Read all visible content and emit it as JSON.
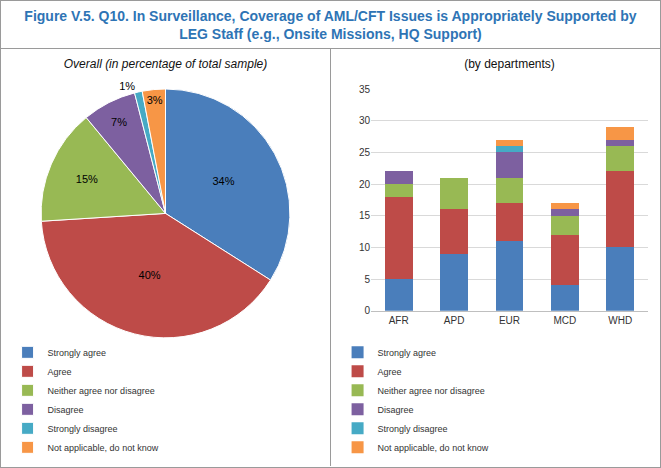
{
  "header": {
    "title": "Figure V.5. Q10. In Surveillance, Coverage of AML/CFT Issues is Appropriately Supported by LEG Staff (e.g., Onsite Missions, HQ Support)"
  },
  "chart_data": [
    {
      "type": "pie",
      "title": "Overall (in percentage of total sample)",
      "categories": [
        "Strongly agree",
        "Agree",
        "Neither agree nor disagree",
        "Disagree",
        "Strongly disagree",
        "Not applicable, do not know"
      ],
      "values": [
        34,
        40,
        15,
        7,
        1,
        3
      ],
      "value_labels": [
        "34%",
        "40%",
        "15%",
        "7%",
        "1%",
        "3%"
      ],
      "colors": [
        "#4a7ebb",
        "#be4b48",
        "#98b954",
        "#7d60a0",
        "#46aac5",
        "#f79646"
      ],
      "data_labels": true,
      "legend": "bottom"
    },
    {
      "type": "bar",
      "title": "(by departments)",
      "categories": [
        "AFR",
        "APD",
        "EUR",
        "MCD",
        "WHD"
      ],
      "series": [
        {
          "name": "Strongly agree",
          "color": "#4a7ebb",
          "values": [
            5,
            9,
            11,
            4,
            10
          ]
        },
        {
          "name": "Agree",
          "color": "#be4b48",
          "values": [
            13,
            7,
            6,
            8,
            12
          ]
        },
        {
          "name": "Neither agree nor disagree",
          "color": "#98b954",
          "values": [
            2,
            5,
            4,
            3,
            4
          ]
        },
        {
          "name": "Disagree",
          "color": "#7d60a0",
          "values": [
            2,
            0,
            4,
            1,
            1
          ]
        },
        {
          "name": "Strongly disagree",
          "color": "#46aac5",
          "values": [
            0,
            0,
            1,
            0,
            0
          ]
        },
        {
          "name": "Not applicable, do not know",
          "color": "#f79646",
          "values": [
            0,
            0,
            1,
            1,
            2
          ]
        }
      ],
      "stacked": true,
      "ylim": [
        0,
        35
      ],
      "yticks": [
        0,
        5,
        10,
        15,
        20,
        25,
        30,
        35
      ],
      "grid": true,
      "legend": "bottom"
    }
  ]
}
